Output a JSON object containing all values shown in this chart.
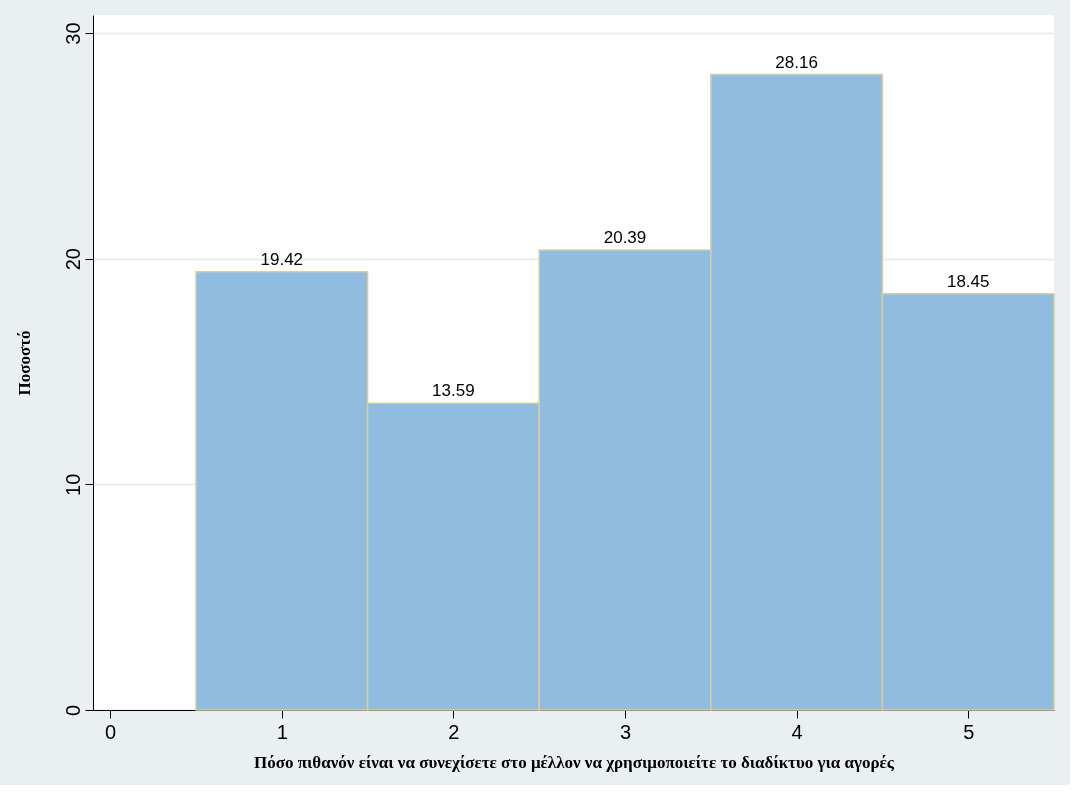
{
  "chart_data": {
    "type": "histogram",
    "xlabel": "Πόσο πιθανόν είναι να συνεχίσετε στο μέλλον να χρησιμοποιείτε το διαδίκτυο για αγορές",
    "ylabel": "Ποσοστό",
    "bins": [
      0.5,
      1.5,
      2.5,
      3.5,
      4.5,
      5.5
    ],
    "values": [
      19.42,
      13.59,
      20.39,
      28.16,
      18.45
    ],
    "color": "#8fbcdf",
    "xlim": [
      -0.1,
      5.5
    ],
    "xticks": [
      0,
      1,
      2,
      3,
      4,
      5
    ],
    "ylim": [
      0,
      30.8
    ],
    "yticks": [
      0,
      10,
      20,
      30
    ],
    "grid": "y",
    "data_labels": true
  }
}
